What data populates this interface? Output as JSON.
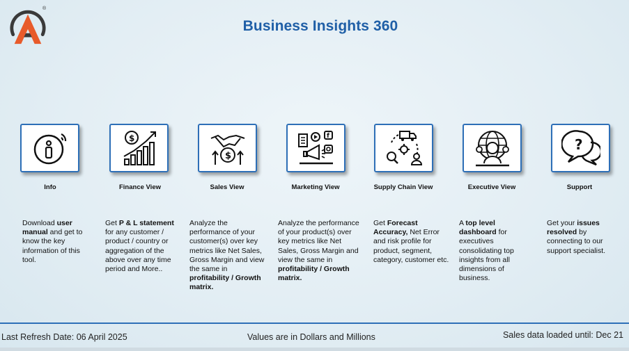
{
  "header": {
    "title": "Business Insights 360",
    "logo_mark": "®"
  },
  "colors": {
    "accent": "#1f5fa7",
    "border": "#2d6fb7",
    "logo_orange": "#e85b2b",
    "logo_dark": "#3a3a3a"
  },
  "cards": [
    {
      "label": "Info",
      "icon": "info-icon",
      "desc": [
        {
          "t": "Download ",
          "b": false
        },
        {
          "t": "user manual",
          "b": true
        },
        {
          "t": " and get to know the key information of this tool.",
          "b": false
        }
      ]
    },
    {
      "label": "Finance View",
      "icon": "finance-chart-icon",
      "desc": [
        {
          "t": "Get  ",
          "b": false
        },
        {
          "t": "P & L statement",
          "b": true
        },
        {
          "t": " for any customer / product / country or aggregation of the above over any time period and More..",
          "b": false
        }
      ]
    },
    {
      "label": "Sales View",
      "icon": "handshake-icon",
      "desc": [
        {
          "t": "Analyze the performance of your customer(s) over key metrics like Net Sales, Gross Margin and view the same in ",
          "b": false
        },
        {
          "t": "profitability / Growth matrix.",
          "b": true
        }
      ]
    },
    {
      "label": "Marketing View",
      "icon": "marketing-megaphone-icon",
      "desc": [
        {
          "t": "Analyze the performance of your product(s) over key metrics like Net Sales, Gross Margin and view the same in ",
          "b": false
        },
        {
          "t": "profitability / Growth matrix.",
          "b": true
        }
      ]
    },
    {
      "label": "Supply Chain View",
      "icon": "supply-chain-icon",
      "desc": [
        {
          "t": "Get ",
          "b": false
        },
        {
          "t": "Forecast Accuracy,",
          "b": true
        },
        {
          "t": " Net Error and risk profile for product, segment, category, customer etc.",
          "b": false
        }
      ]
    },
    {
      "label": "Executive View",
      "icon": "executive-globe-icon",
      "desc": [
        {
          "t": "A ",
          "b": false
        },
        {
          "t": "top level dashboard",
          "b": true
        },
        {
          "t": " for executives consolidating top insights from all dimensions of business.",
          "b": false
        }
      ]
    },
    {
      "label": "Support",
      "icon": "support-chat-icon",
      "desc": [
        {
          "t": "Get your ",
          "b": false
        },
        {
          "t": "issues resolved",
          "b": true
        },
        {
          "t": " by connecting to our support specialist.",
          "b": false
        }
      ]
    }
  ],
  "footer": {
    "refresh": "Last Refresh Date:  06 April 2025",
    "values_note": "Values are in Dollars and Millions",
    "sales_loaded": "Sales data loaded until: Dec 21"
  }
}
